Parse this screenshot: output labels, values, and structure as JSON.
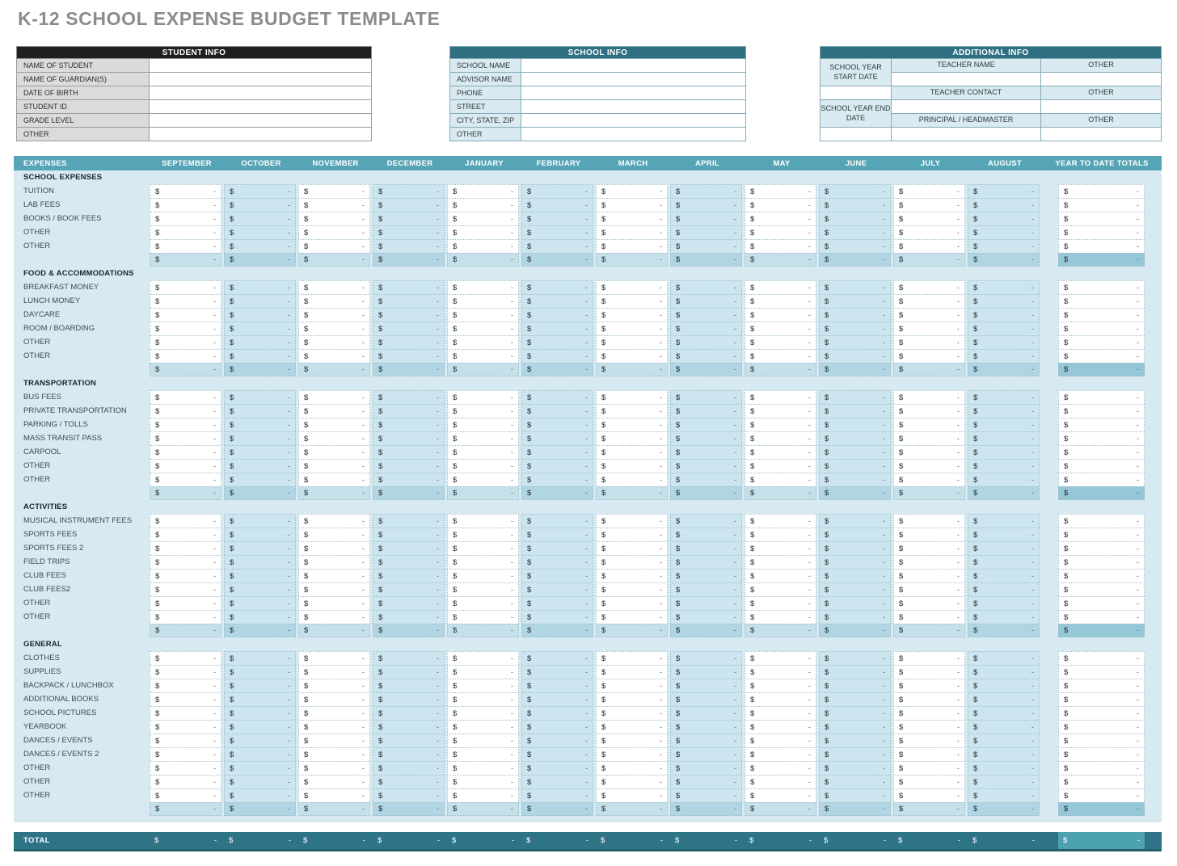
{
  "title": "K-12 SCHOOL EXPENSE BUDGET TEMPLATE",
  "student_info": {
    "header": "STUDENT INFO",
    "rows": [
      "NAME OF STUDENT",
      "NAME OF GUARDIAN(S)",
      "DATE OF BIRTH",
      "STUDENT ID",
      "GRADE LEVEL",
      "OTHER"
    ],
    "values": [
      "",
      "",
      "",
      "",
      "",
      ""
    ]
  },
  "school_info": {
    "header": "SCHOOL INFO",
    "rows": [
      "SCHOOL NAME",
      "ADVISOR NAME",
      "PHONE",
      "STREET ADDRESS",
      "CITY, STATE, ZIP",
      "OTHER"
    ],
    "values": [
      "",
      "",
      "",
      "",
      "",
      ""
    ]
  },
  "additional_info": {
    "header": "ADDITIONAL INFO",
    "left_labels": [
      "SCHOOL YEAR START DATE",
      "SCHOOL YEAR END DATE"
    ],
    "field_labels": [
      "TEACHER NAME",
      "TEACHER CONTACT",
      "PRINCIPAL / HEADMASTER"
    ],
    "other_labels": [
      "OTHER",
      "OTHER",
      "OTHER"
    ],
    "values": [
      "",
      "",
      "",
      "",
      "",
      ""
    ]
  },
  "expense_table": {
    "expenses_header": "EXPENSES",
    "months": [
      "SEPTEMBER",
      "OCTOBER",
      "NOVEMBER",
      "DECEMBER",
      "JANUARY",
      "FEBRUARY",
      "MARCH",
      "APRIL",
      "MAY",
      "JUNE",
      "JULY",
      "AUGUST"
    ],
    "ytd_header": "YEAR TO DATE TOTALS",
    "currency_symbol": "$",
    "empty_value": "-",
    "sections": [
      {
        "name": "SCHOOL EXPENSES",
        "rows": [
          "TUITION",
          "LAB FEES",
          "BOOKS / BOOK FEES",
          "OTHER",
          "OTHER"
        ]
      },
      {
        "name": "FOOD & ACCOMMODATIONS",
        "rows": [
          "BREAKFAST MONEY",
          "LUNCH MONEY",
          "DAYCARE",
          "ROOM / BOARDING",
          "OTHER",
          "OTHER"
        ]
      },
      {
        "name": "TRANSPORTATION",
        "rows": [
          "BUS FEES",
          "PRIVATE TRANSPORTATION",
          "PARKING / TOLLS",
          "MASS TRANSIT PASS",
          "CARPOOL",
          "OTHER",
          "OTHER"
        ]
      },
      {
        "name": "ACTIVITIES",
        "rows": [
          "MUSICAL INSTRUMENT FEES",
          "SPORTS FEES",
          "SPORTS FEES 2",
          "FIELD TRIPS",
          "CLUB FEES",
          "CLUB FEES2",
          "OTHER",
          "OTHER"
        ]
      },
      {
        "name": "GENERAL",
        "rows": [
          "CLOTHES",
          "SUPPLIES",
          "BACKPACK / LUNCHBOX",
          "ADDITIONAL BOOKS",
          "SCHOOL PICTURES",
          "YEARBOOK",
          "DANCES / EVENTS",
          "DANCES / EVENTS 2",
          "OTHER",
          "OTHER",
          "OTHER"
        ]
      }
    ],
    "total_label": "TOTAL"
  },
  "colors": {
    "title_gray": "#8b8b8b",
    "student_header_bg": "#1f1f1f",
    "teal_header_dark": "#2e6f82",
    "table_header_teal": "#56a5b6",
    "table_body_bg": "#d8eaf1",
    "cell_alt_blue": "#cde5ef",
    "subtotal_light": "#c6e0ea",
    "subtotal_dark": "#b2d5e3",
    "subtotal_ytd": "#95c7d7",
    "total_bar_bg": "#2f7386",
    "total_ytd_bg": "#4da2b2",
    "label_gray_bg": "#dbdbdb",
    "label_blue_bg": "#d9eaf0"
  }
}
